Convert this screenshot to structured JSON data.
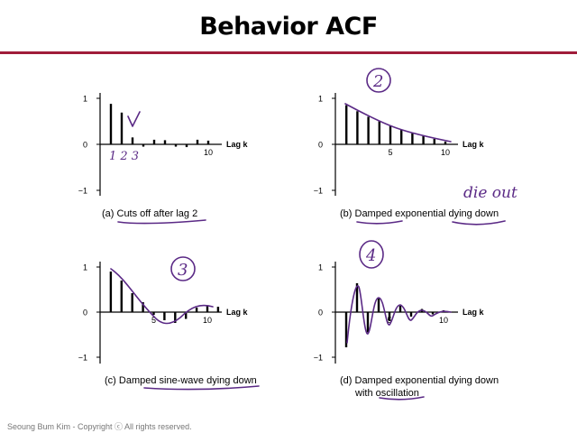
{
  "slide": {
    "title": "Behavior ACF",
    "footer": "Seoung Bum Kim - Copyright ⓒ All rights reserved.",
    "accent_color": "#a01d3a",
    "annotation_color": "#5b2a86"
  },
  "chart_data": [
    {
      "type": "bar",
      "title": "",
      "caption_prefix": "(a) ",
      "caption_text": "Cuts off after lag 2",
      "xlabel": "Lag k",
      "ylabel": "",
      "xlim": [
        0,
        12
      ],
      "ylim": [
        -1,
        1
      ],
      "xticks": [
        {
          "value": 10,
          "label": "10"
        }
      ],
      "yticks": [
        {
          "value": 1,
          "label": "1"
        },
        {
          "value": 0,
          "label": "0"
        },
        {
          "value": -1,
          "label": "−1"
        }
      ],
      "x": [
        1,
        2,
        3,
        4,
        5,
        6,
        7,
        8,
        9,
        10,
        11
      ],
      "values": [
        0.88,
        0.69,
        0.15,
        -0.05,
        0.1,
        0.09,
        -0.05,
        -0.06,
        0.1,
        0.08,
        0
      ],
      "grid": false,
      "annotations": {
        "handwriting": [
          "1 2 3"
        ],
        "underlines": [
          "Cuts off",
          "after lag 2"
        ]
      }
    },
    {
      "type": "bar",
      "title": "",
      "caption_prefix": "(b) ",
      "caption_text": "Damped exponential dying down",
      "xlabel": "Lag k",
      "ylabel": "",
      "xlim": [
        0,
        12
      ],
      "ylim": [
        -1,
        1
      ],
      "xticks": [
        {
          "value": 5,
          "label": "5"
        },
        {
          "value": 10,
          "label": "10"
        }
      ],
      "yticks": [
        {
          "value": 1,
          "label": "1"
        },
        {
          "value": 0,
          "label": "0"
        },
        {
          "value": -1,
          "label": "−1"
        }
      ],
      "x": [
        1,
        2,
        3,
        4,
        5,
        6,
        7,
        8,
        9,
        10
      ],
      "values": [
        0.85,
        0.72,
        0.6,
        0.5,
        0.4,
        0.32,
        0.24,
        0.18,
        0.12,
        0.06
      ],
      "grid": false,
      "annotations": {
        "handwriting": [
          "2",
          "die out"
        ],
        "underlines": [
          "Damped",
          "dying down"
        ]
      }
    },
    {
      "type": "bar",
      "title": "",
      "caption_prefix": "(c) ",
      "caption_text": "Damped sine-wave dying down",
      "xlabel": "Lag k",
      "ylabel": "",
      "xlim": [
        0,
        12
      ],
      "ylim": [
        -1,
        1
      ],
      "xticks": [
        {
          "value": 5,
          "label": "5"
        },
        {
          "value": 10,
          "label": "10"
        }
      ],
      "yticks": [
        {
          "value": 1,
          "label": "1"
        },
        {
          "value": 0,
          "label": "0"
        },
        {
          "value": -1,
          "label": "−1"
        }
      ],
      "x": [
        1,
        2,
        3,
        4,
        5,
        6,
        7,
        8,
        9,
        10,
        11
      ],
      "values": [
        0.9,
        0.7,
        0.42,
        0.22,
        -0.06,
        -0.18,
        -0.24,
        -0.15,
        0.1,
        0.15,
        0.12
      ],
      "grid": false,
      "annotations": {
        "handwriting": [
          "3"
        ],
        "underlines": [
          "sine-wave",
          "dying down"
        ]
      }
    },
    {
      "type": "bar",
      "title": "",
      "caption_prefix": "(d) ",
      "caption_text": "Damped exponential dying down",
      "caption_text2": "with oscillation",
      "xlabel": "Lag k",
      "ylabel": "",
      "xlim": [
        0,
        12
      ],
      "ylim": [
        -1,
        1
      ],
      "xticks": [
        {
          "value": 5,
          "label": "5"
        },
        {
          "value": 10,
          "label": "10"
        }
      ],
      "yticks": [
        {
          "value": 1,
          "label": "1"
        },
        {
          "value": 0,
          "label": "0"
        },
        {
          "value": -1,
          "label": "−1"
        }
      ],
      "x": [
        1,
        2,
        3,
        4,
        5,
        6,
        7,
        8,
        9,
        10
      ],
      "values": [
        -0.78,
        0.64,
        -0.45,
        0.3,
        -0.2,
        0.14,
        -0.1,
        0.07,
        -0.05,
        0.04
      ],
      "grid": false,
      "annotations": {
        "handwriting": [
          "4"
        ],
        "underlines": [
          "oscillation"
        ]
      }
    }
  ]
}
